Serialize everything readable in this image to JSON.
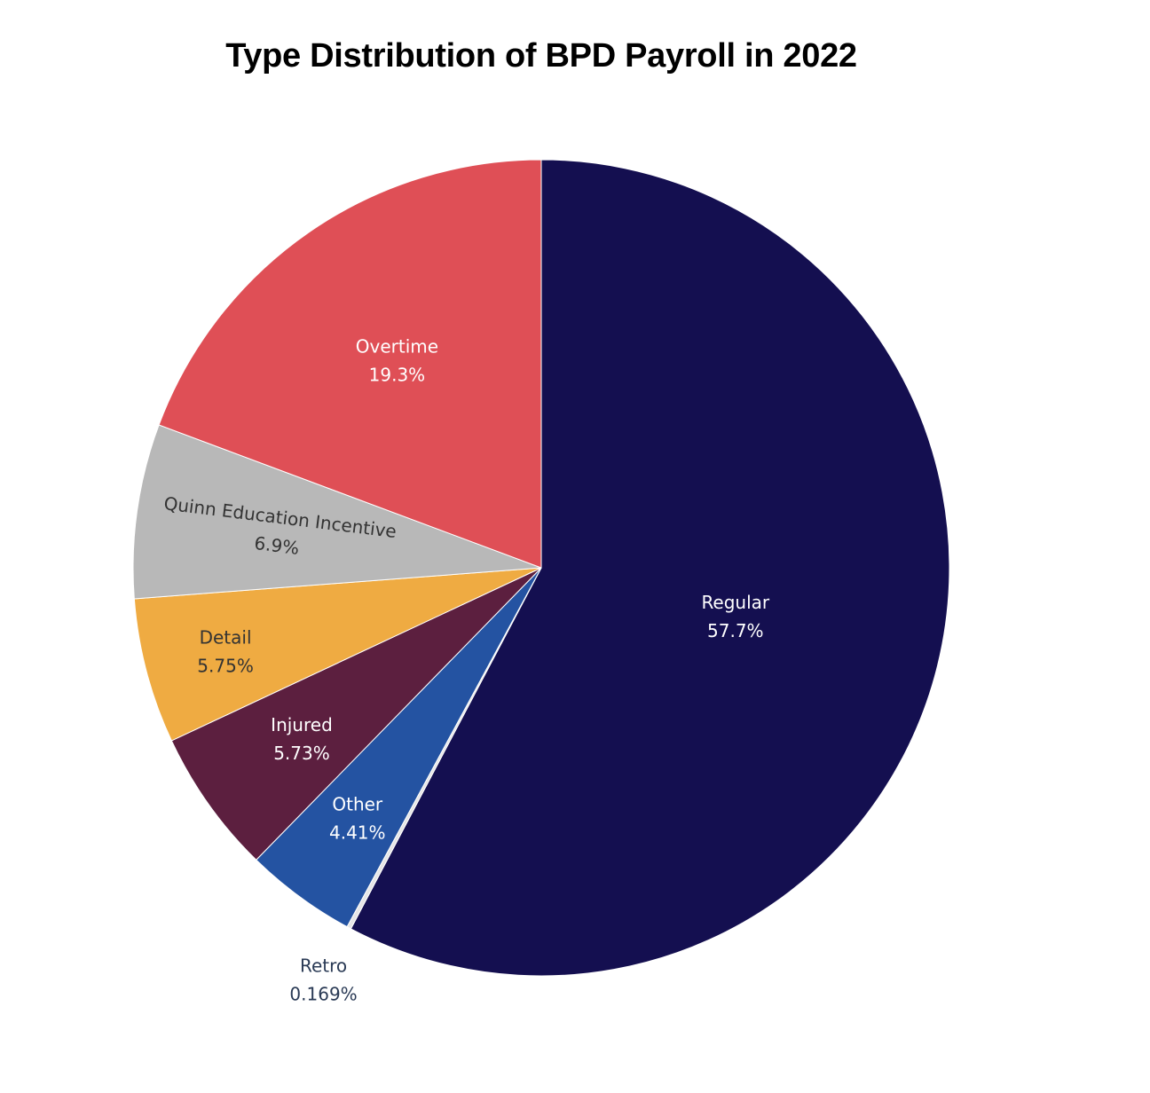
{
  "chart_data": {
    "type": "pie",
    "title": "Type Distribution of BPD Payroll in 2022",
    "slices": [
      {
        "name": "Regular",
        "value": 57.7,
        "display": "57.7%",
        "color": "#140f50",
        "text_color": "#ffffff"
      },
      {
        "name": "Retro",
        "value": 0.169,
        "display": "0.169%",
        "color": "#e6e6e6",
        "text_color": "#2a3a55"
      },
      {
        "name": "Other",
        "value": 4.41,
        "display": "4.41%",
        "color": "#2453a2",
        "text_color": "#ffffff"
      },
      {
        "name": "Injured",
        "value": 5.73,
        "display": "5.73%",
        "color": "#5c1f3f",
        "text_color": "#ffffff"
      },
      {
        "name": "Detail",
        "value": 5.75,
        "display": "5.75%",
        "color": "#efab42",
        "text_color": "#333333"
      },
      {
        "name": "Quinn Education Incentive",
        "value": 6.9,
        "display": "6.9%",
        "color": "#b8b8b8",
        "text_color": "#333333"
      },
      {
        "name": "Overtime",
        "value": 19.3,
        "display": "19.3%",
        "color": "#df4f56",
        "text_color": "#ffffff"
      }
    ],
    "start": "12 o'clock",
    "direction": "clockwise",
    "legend": "none"
  }
}
